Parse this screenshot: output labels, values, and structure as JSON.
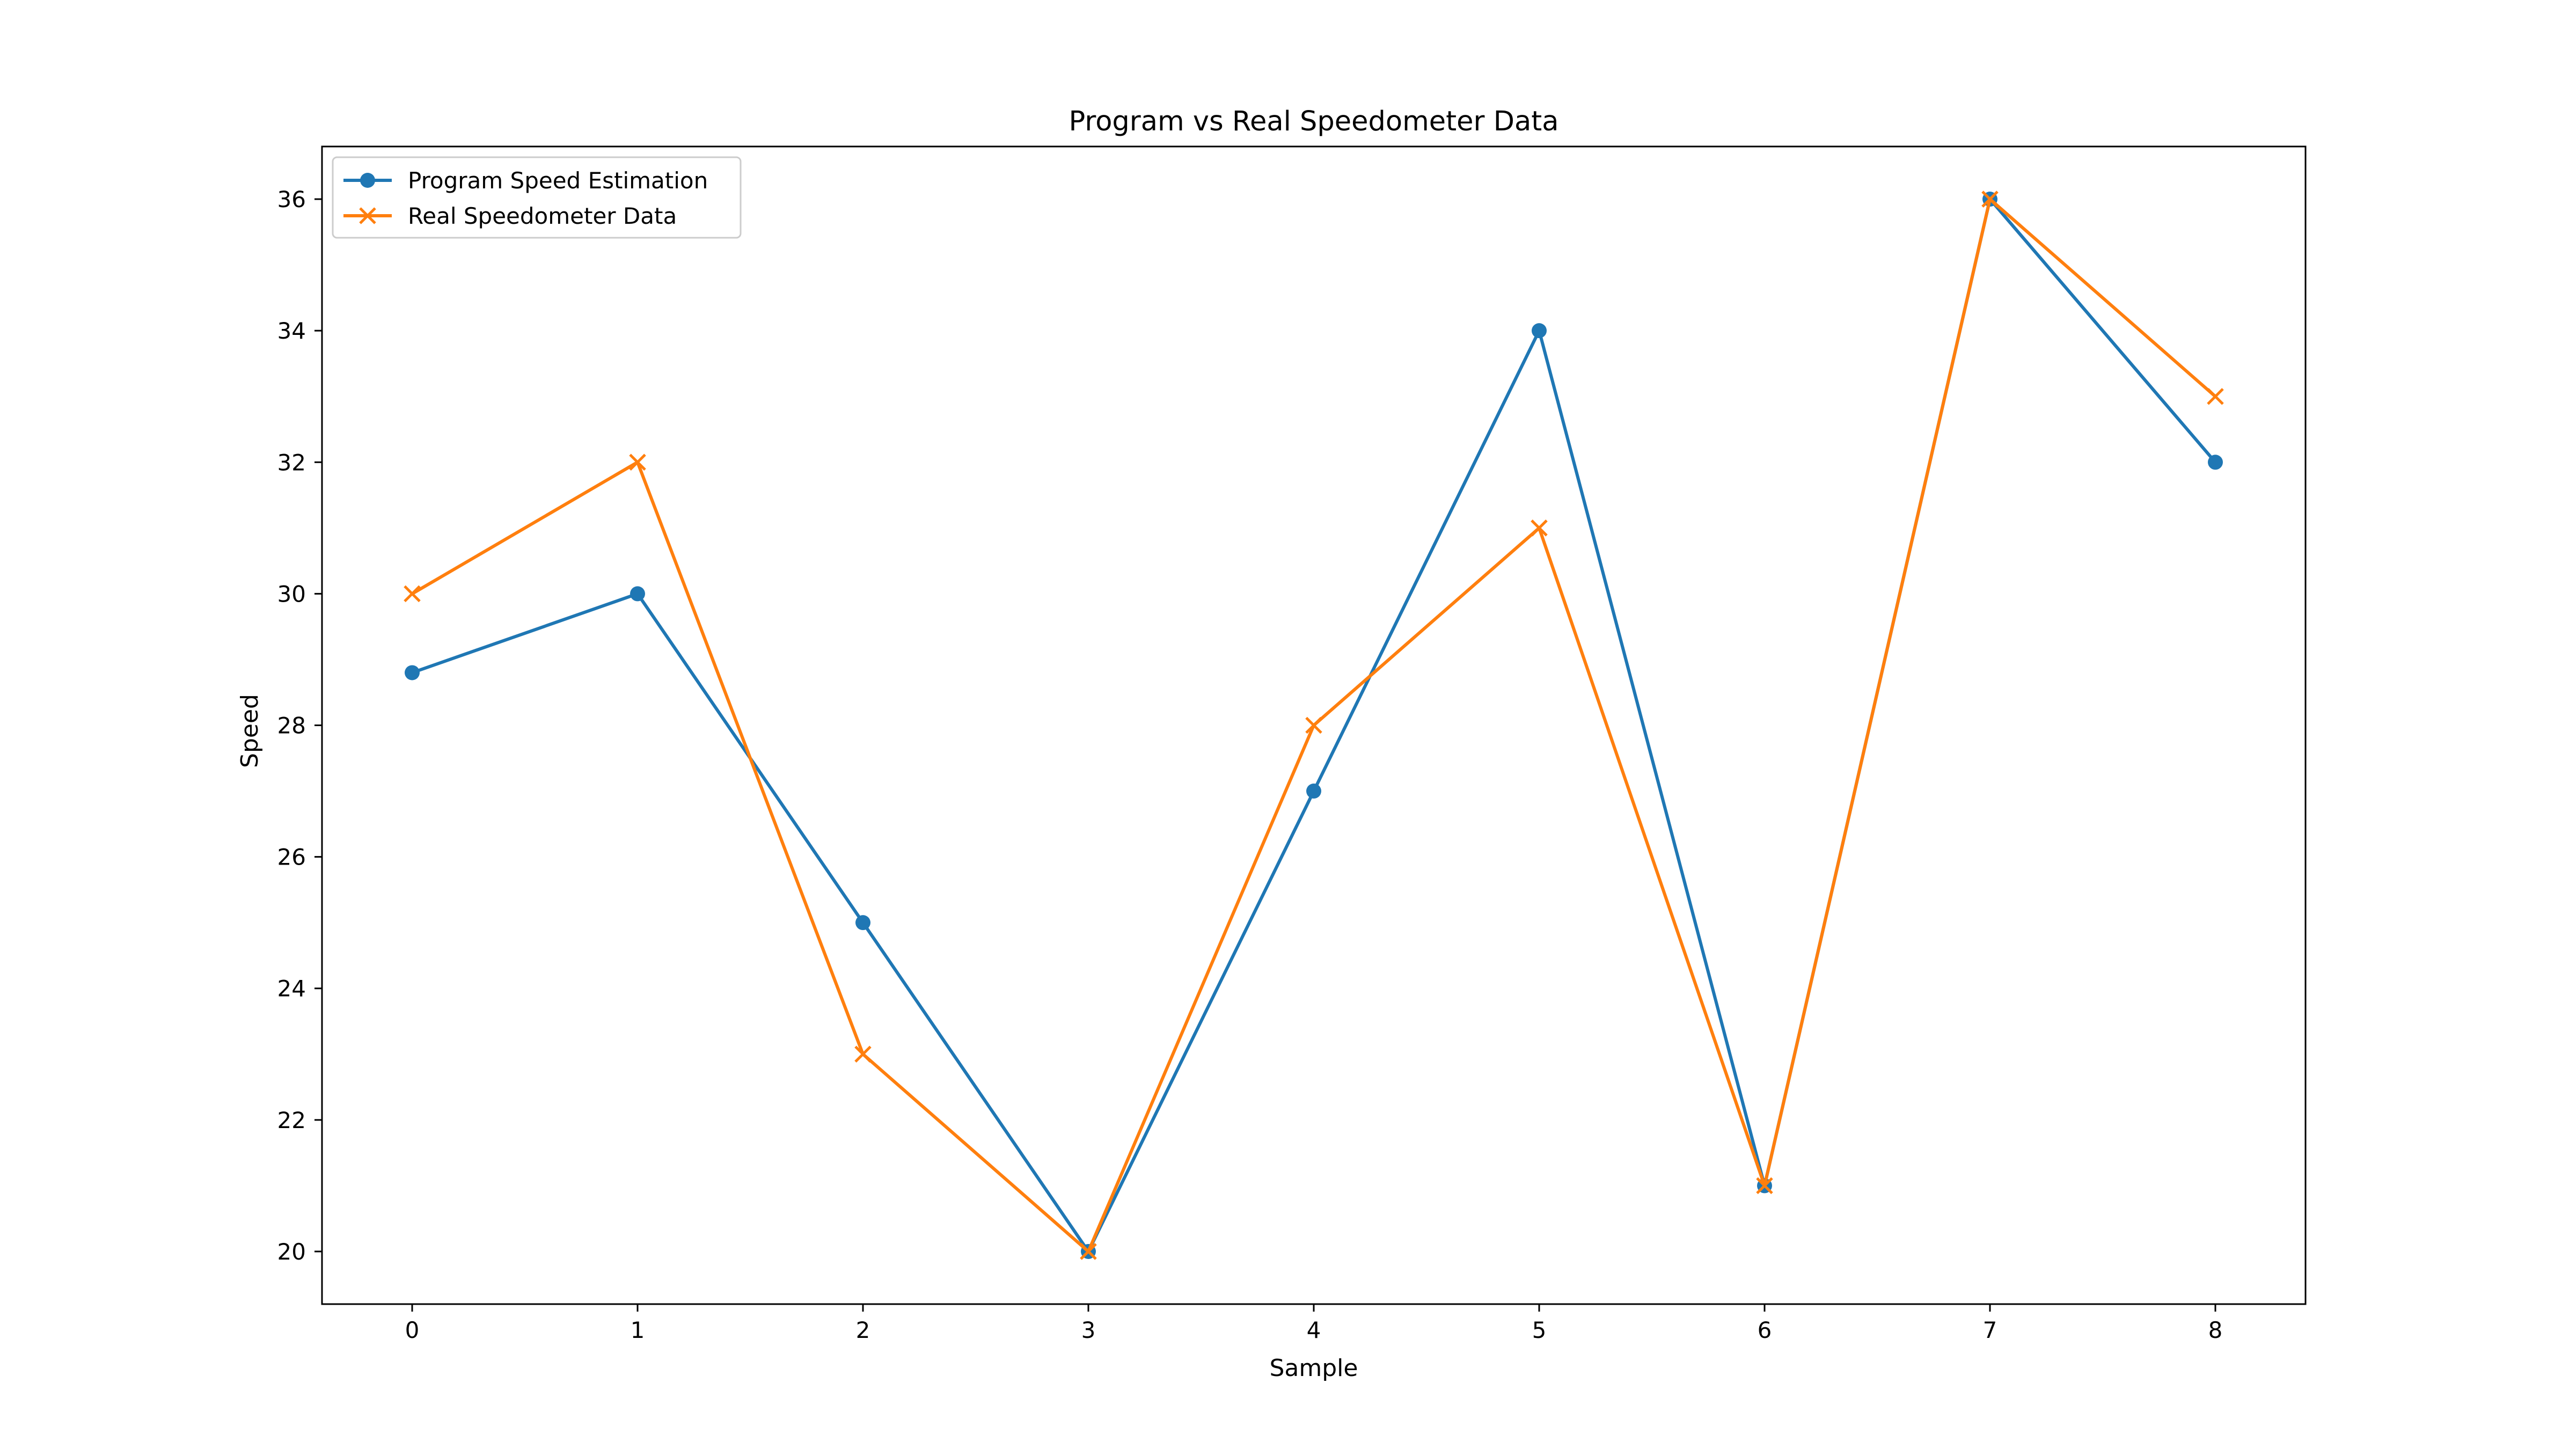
{
  "chart_data": {
    "type": "line",
    "title": "Program vs Real Speedometer Data",
    "xlabel": "Sample",
    "ylabel": "Speed",
    "x": [
      0,
      1,
      2,
      3,
      4,
      5,
      6,
      7,
      8
    ],
    "xticks": [
      0,
      1,
      2,
      3,
      4,
      5,
      6,
      7,
      8
    ],
    "yticks": [
      20,
      22,
      24,
      26,
      28,
      30,
      32,
      34,
      36
    ],
    "xlim": [
      -0.4,
      8.4
    ],
    "ylim": [
      19.2,
      36.8
    ],
    "grid": false,
    "legend_position": "upper-left",
    "series": [
      {
        "name": "Program Speed Estimation",
        "color": "#1f77b4",
        "marker": "circle",
        "values": [
          28.8,
          30,
          25,
          20,
          27,
          34,
          21,
          36,
          32
        ]
      },
      {
        "name": "Real Speedometer Data",
        "color": "#ff7f0e",
        "marker": "x",
        "values": [
          30,
          32,
          23,
          20,
          28,
          31,
          21,
          36,
          33
        ]
      }
    ]
  }
}
